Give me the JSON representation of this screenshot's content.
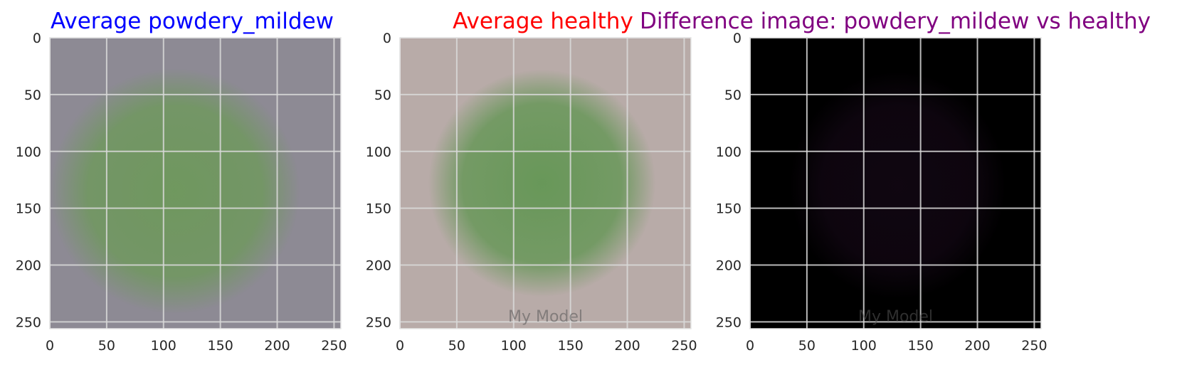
{
  "chart_data": [
    {
      "type": "image",
      "title": "Average powdery_mildew",
      "title_color": "#0000ff",
      "xlim": [
        0,
        256
      ],
      "ylim": [
        256,
        0
      ],
      "xticks": [
        0,
        50,
        100,
        150,
        200,
        250
      ],
      "yticks": [
        0,
        50,
        100,
        150,
        200,
        250
      ],
      "grid": true,
      "image": {
        "background": "#8d8a94",
        "leaf_color": "#6a9a55",
        "leaf_center": [
          110,
          135
        ],
        "leaf_radius": [
          110,
          108
        ],
        "leaf_opacity": 0.85
      },
      "watermark": ""
    },
    {
      "type": "image",
      "title": "Average healthy",
      "title_color": "#ff0000",
      "xlim": [
        0,
        256
      ],
      "ylim": [
        256,
        0
      ],
      "xticks": [
        0,
        50,
        100,
        150,
        200,
        250
      ],
      "yticks": [
        0,
        50,
        100,
        150,
        200,
        250
      ],
      "grid": true,
      "image": {
        "background": "#b8aba8",
        "leaf_color": "#5f9550",
        "leaf_center": [
          125,
          128
        ],
        "leaf_radius": [
          100,
          100
        ],
        "leaf_opacity": 0.9
      },
      "watermark": "My Model"
    },
    {
      "type": "image",
      "title": "Difference image: powdery_mildew vs healthy",
      "title_color": "#800080",
      "xlim": [
        0,
        256
      ],
      "ylim": [
        256,
        0
      ],
      "xticks": [
        0,
        50,
        100,
        150,
        200,
        250
      ],
      "yticks": [
        0,
        50,
        100,
        150,
        200,
        250
      ],
      "grid": true,
      "image": {
        "background": "#000000",
        "leaf_color": "#1a0a1c",
        "leaf_center": [
          130,
          130
        ],
        "leaf_radius": [
          95,
          100
        ],
        "leaf_opacity": 0.6
      },
      "watermark": "My Model"
    }
  ]
}
